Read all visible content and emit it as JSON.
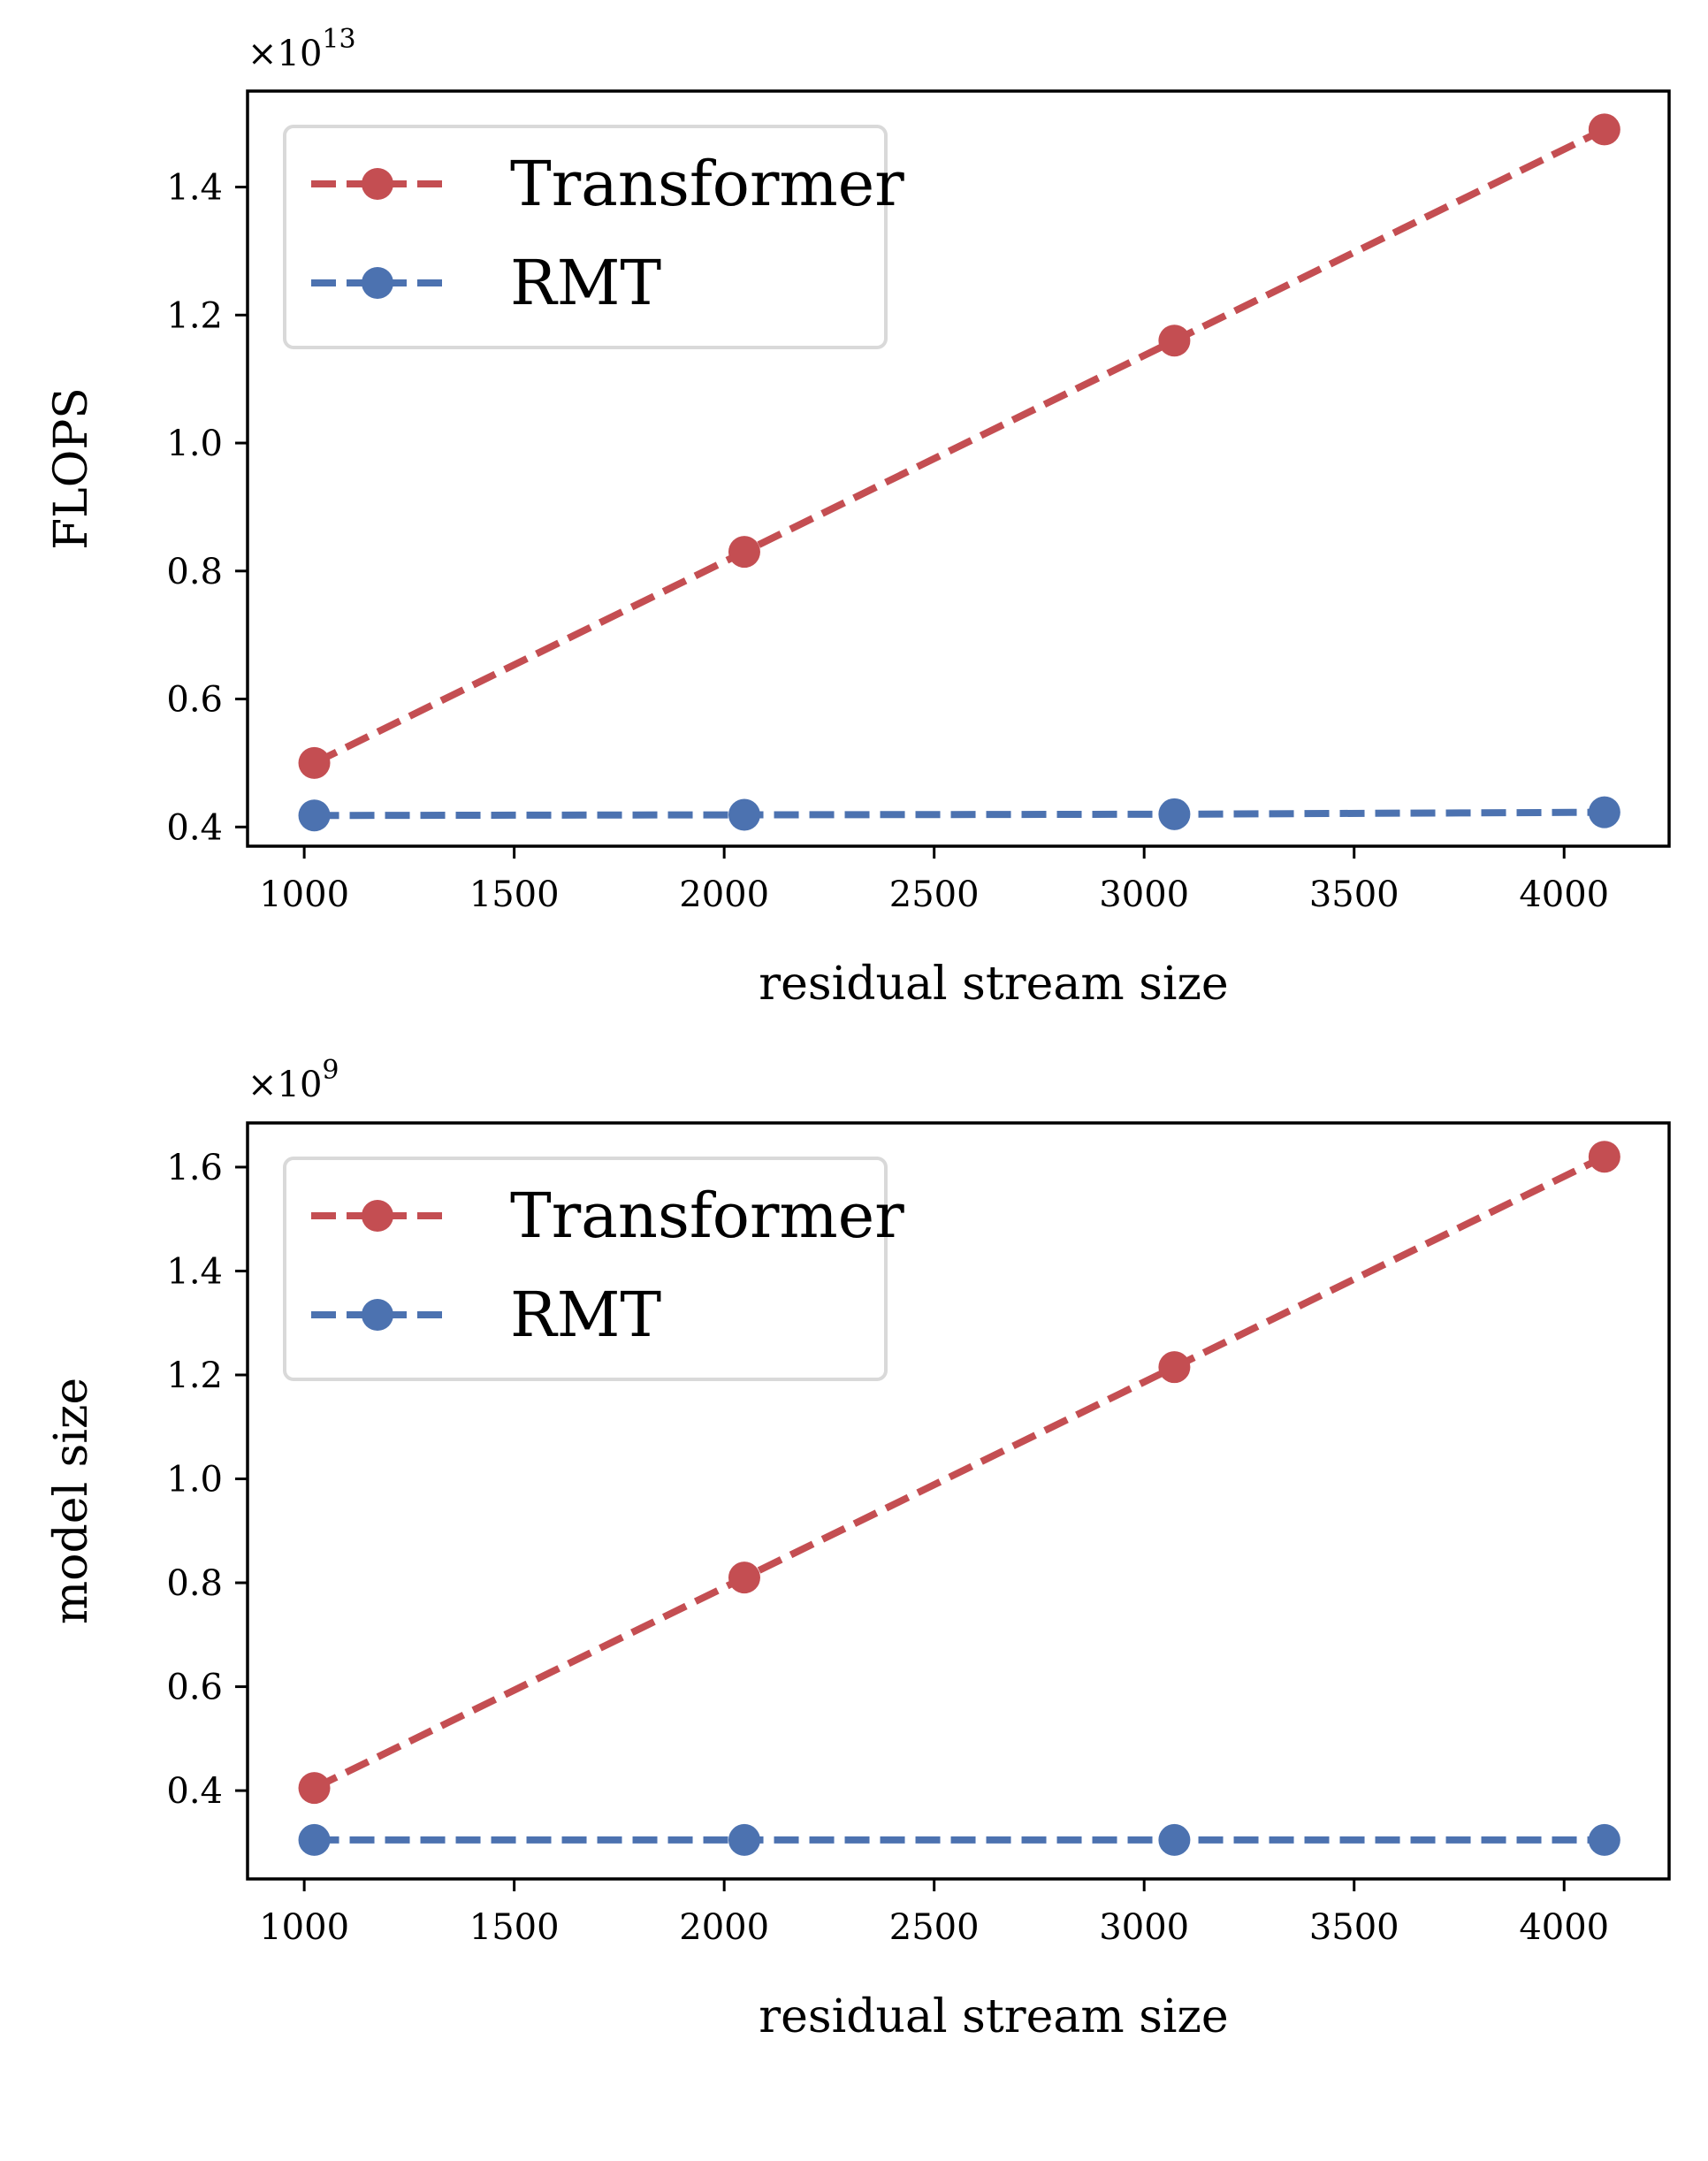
{
  "chart_data": [
    {
      "type": "line",
      "xlabel": "residual stream size",
      "ylabel": "FLOPS",
      "y_multiplier_base": "×10",
      "y_multiplier_exp": "13",
      "xlim": [
        865,
        4250
      ],
      "ylim": [
        0.37,
        1.55
      ],
      "xticks": [
        1000,
        1500,
        2000,
        2500,
        3000,
        3500,
        4000
      ],
      "xtick_labels": [
        "1000",
        "1500",
        "2000",
        "2500",
        "3000",
        "3500",
        "4000"
      ],
      "yticks": [
        0.4,
        0.6,
        0.8,
        1.0,
        1.2,
        1.4
      ],
      "ytick_labels": [
        "0.4",
        "0.6",
        "0.8",
        "1.0",
        "1.2",
        "1.4"
      ],
      "x": [
        1024,
        2048,
        3072,
        4096
      ],
      "series": [
        {
          "name": "Transformer",
          "color": "#c44e52",
          "values": [
            0.5,
            0.83,
            1.16,
            1.49
          ]
        },
        {
          "name": "RMT",
          "color": "#4c72b0",
          "values": [
            0.418,
            0.419,
            0.42,
            0.423
          ]
        }
      ],
      "legend": "top-left",
      "grid": false
    },
    {
      "type": "line",
      "xlabel": "residual stream size",
      "ylabel": "model size",
      "y_multiplier_base": "×10",
      "y_multiplier_exp": "9",
      "xlim": [
        865,
        4250
      ],
      "ylim": [
        0.23,
        1.685
      ],
      "xticks": [
        1000,
        1500,
        2000,
        2500,
        3000,
        3500,
        4000
      ],
      "xtick_labels": [
        "1000",
        "1500",
        "2000",
        "2500",
        "3000",
        "3500",
        "4000"
      ],
      "yticks": [
        0.4,
        0.6,
        0.8,
        1.0,
        1.2,
        1.4,
        1.6
      ],
      "ytick_labels": [
        "0.4",
        "0.6",
        "0.8",
        "1.0",
        "1.2",
        "1.4",
        "1.6"
      ],
      "x": [
        1024,
        2048,
        3072,
        4096
      ],
      "series": [
        {
          "name": "Transformer",
          "color": "#c44e52",
          "values": [
            0.405,
            0.81,
            1.215,
            1.62
          ]
        },
        {
          "name": "RMT",
          "color": "#4c72b0",
          "values": [
            0.305,
            0.305,
            0.305,
            0.305
          ]
        }
      ],
      "legend": "top-left",
      "grid": false
    }
  ]
}
